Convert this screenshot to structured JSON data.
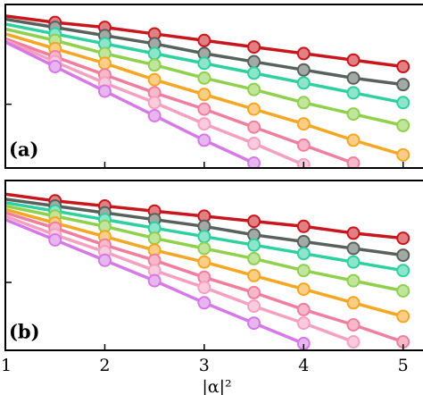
{
  "chart_data": [
    {
      "type": "line",
      "annotation": "(a)",
      "x": [
        1,
        1.5,
        2,
        2.5,
        3,
        3.5,
        4,
        4.5,
        5
      ],
      "xlim": [
        1,
        5.2
      ],
      "ylim": [
        0,
        1
      ],
      "yticks": [
        0.39
      ],
      "series": [
        {
          "color": "#c8161d",
          "values": [
            0.93,
            0.89,
            0.86,
            0.82,
            0.78,
            0.74,
            0.7,
            0.66,
            0.62
          ]
        },
        {
          "color": "#58625c",
          "values": [
            0.91,
            0.86,
            0.81,
            0.76,
            0.7,
            0.65,
            0.6,
            0.55,
            0.51
          ]
        },
        {
          "color": "#2fd0a0",
          "values": [
            0.88,
            0.82,
            0.76,
            0.7,
            0.64,
            0.58,
            0.52,
            0.46,
            0.4
          ]
        },
        {
          "color": "#8fd04c",
          "values": [
            0.85,
            0.78,
            0.7,
            0.63,
            0.55,
            0.48,
            0.4,
            0.33,
            0.26
          ]
        },
        {
          "color": "#f5a623",
          "values": [
            0.82,
            0.73,
            0.64,
            0.54,
            0.45,
            0.36,
            0.27,
            0.17,
            0.08
          ]
        },
        {
          "color": "#f07f9f",
          "values": [
            0.79,
            0.68,
            0.57,
            0.46,
            0.36,
            0.25,
            0.14,
            0.03,
            null
          ]
        },
        {
          "color": "#f5a0c0",
          "values": [
            0.78,
            0.65,
            0.52,
            0.4,
            0.27,
            0.15,
            0.02,
            null,
            null
          ]
        },
        {
          "color": "#d679e6",
          "values": [
            0.77,
            0.62,
            0.47,
            0.32,
            0.17,
            0.03,
            null,
            null,
            null
          ]
        }
      ]
    },
    {
      "type": "line",
      "annotation": "(b)",
      "xlabel": "|α|²",
      "x": [
        1,
        1.5,
        2,
        2.5,
        3,
        3.5,
        4,
        4.5,
        5
      ],
      "xlim": [
        1,
        5.2
      ],
      "xticks": [
        1,
        2,
        3,
        4,
        5
      ],
      "ylim": [
        0,
        1
      ],
      "yticks": [
        0.4
      ],
      "series": [
        {
          "color": "#c8161d",
          "values": [
            0.92,
            0.88,
            0.85,
            0.82,
            0.79,
            0.76,
            0.73,
            0.69,
            0.66
          ]
        },
        {
          "color": "#58625c",
          "values": [
            0.89,
            0.85,
            0.81,
            0.77,
            0.73,
            0.68,
            0.64,
            0.6,
            0.56
          ]
        },
        {
          "color": "#2fd0a0",
          "values": [
            0.87,
            0.82,
            0.77,
            0.72,
            0.67,
            0.62,
            0.57,
            0.52,
            0.47
          ]
        },
        {
          "color": "#8fd04c",
          "values": [
            0.85,
            0.79,
            0.73,
            0.66,
            0.6,
            0.54,
            0.47,
            0.41,
            0.35
          ]
        },
        {
          "color": "#f5a623",
          "values": [
            0.83,
            0.75,
            0.67,
            0.59,
            0.52,
            0.44,
            0.36,
            0.28,
            0.2
          ]
        },
        {
          "color": "#f07f9f",
          "values": [
            0.81,
            0.72,
            0.62,
            0.53,
            0.43,
            0.34,
            0.24,
            0.15,
            0.05
          ]
        },
        {
          "color": "#f5a0c0",
          "values": [
            0.79,
            0.68,
            0.58,
            0.47,
            0.37,
            0.26,
            0.16,
            0.05,
            null
          ]
        },
        {
          "color": "#d679e6",
          "values": [
            0.77,
            0.65,
            0.53,
            0.41,
            0.28,
            0.16,
            0.04,
            null,
            null
          ]
        }
      ]
    }
  ]
}
